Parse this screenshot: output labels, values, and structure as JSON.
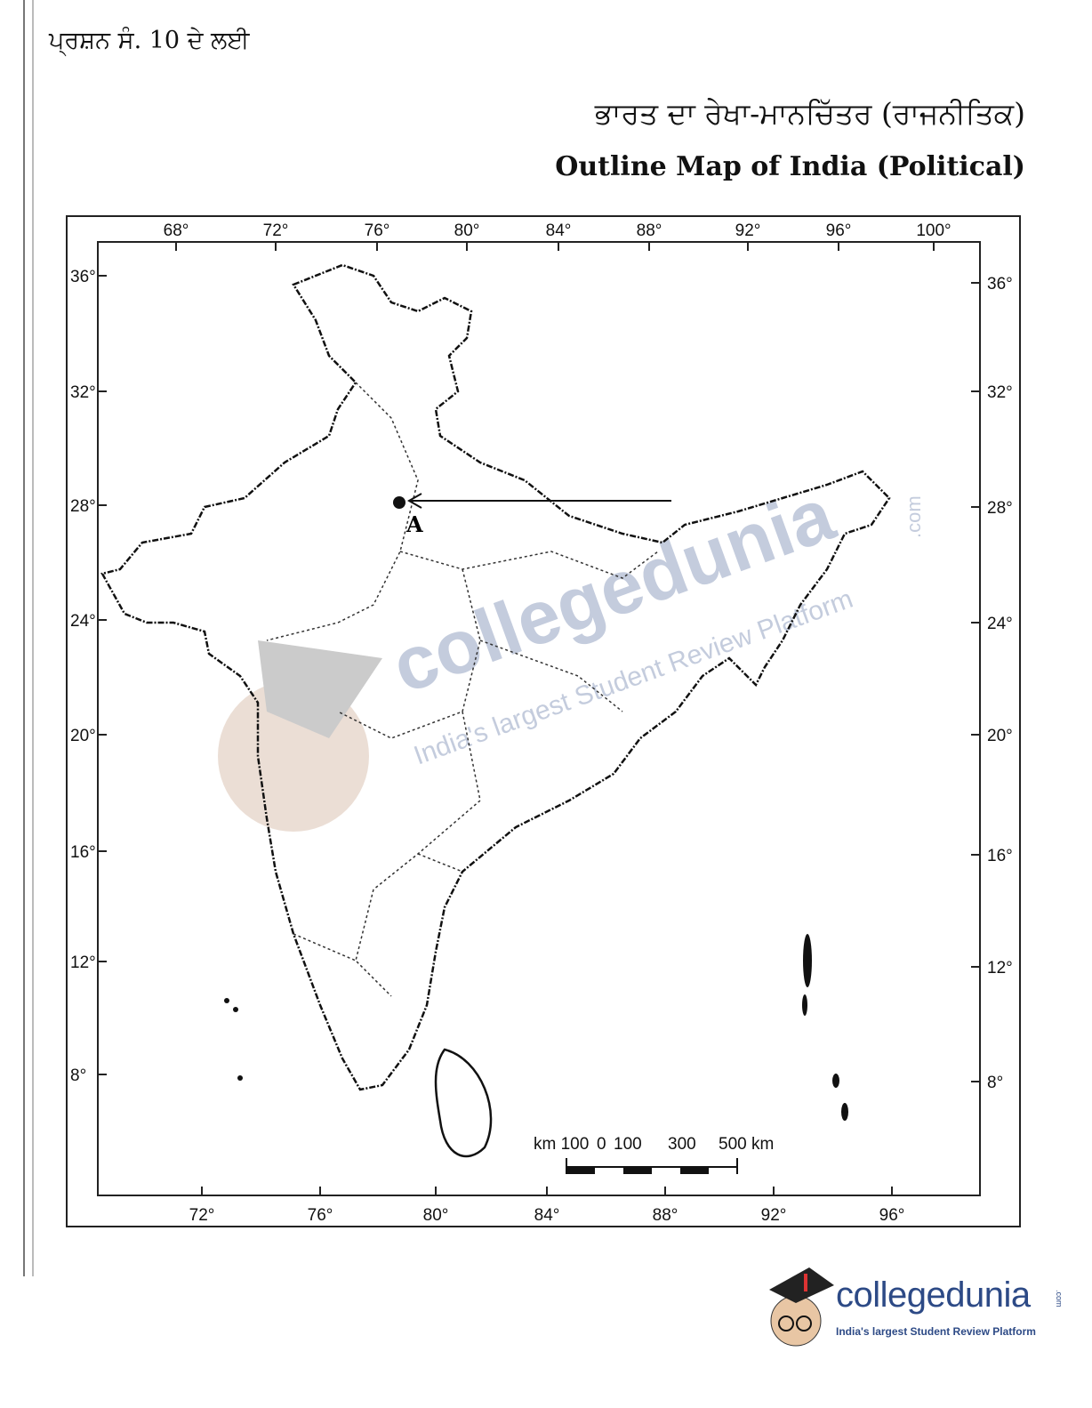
{
  "header": {
    "question_label": "ਪ੍ਰਸ਼ਨ ਸੰ. 10 ਦੇ ਲਈ",
    "title_punjabi": "ਭਾਰਤ ਦਾ ਰੇਖਾ-ਮਾਨਚਿੱਤਰ (ਰਾਜਨੀਤਿਕ)",
    "title_english": "Outline Map of India (Political)"
  },
  "map": {
    "longitudes_top": [
      "68°",
      "72°",
      "76°",
      "80°",
      "84°",
      "88°",
      "92°",
      "96°",
      "100°"
    ],
    "longitudes_bottom": [
      "72°",
      "76°",
      "80°",
      "84°",
      "88°",
      "92°",
      "96°"
    ],
    "latitudes_left": [
      "36°",
      "32°",
      "28°",
      "24°",
      "20°",
      "16°",
      "12°",
      "8°"
    ],
    "latitudes_right": [
      "36°",
      "32°",
      "28°",
      "24°",
      "20°",
      "16°",
      "12°",
      "8°"
    ],
    "marked_point": {
      "label": "A"
    },
    "scale_bar": {
      "labels": [
        "km 100",
        "0",
        "100",
        "300",
        "500 km"
      ]
    }
  },
  "watermark": {
    "brand": "collegedunia",
    "domain": ".com",
    "tagline": "India's largest Student Review Platform"
  },
  "logo": {
    "brand": "collegedunia",
    "domain": ".com",
    "tagline": "India's largest Student Review Platform",
    "brand_color": "#2d4a86"
  }
}
